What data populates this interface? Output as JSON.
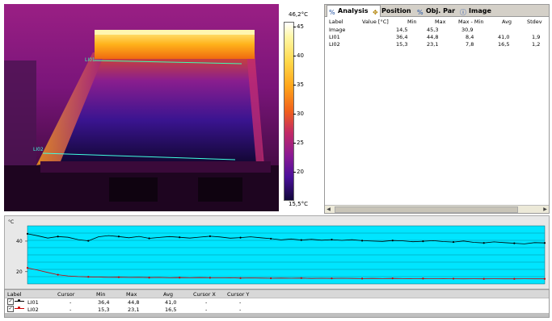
{
  "thermal": {
    "line_labels": [
      "LI01",
      "LI02"
    ],
    "scale_max": "46,2°C",
    "scale_min": "15,5°C",
    "scale_ticks": [
      "45",
      "40",
      "35",
      "30",
      "25",
      "20"
    ]
  },
  "tabs": [
    {
      "label": "Analysis",
      "icon": "analysis-icon"
    },
    {
      "label": "Position",
      "icon": "position-icon"
    },
    {
      "label": "Obj. Par",
      "icon": "object-parameters-icon"
    },
    {
      "label": "Image",
      "icon": "info-icon"
    }
  ],
  "analysis_table": {
    "columns": [
      "Label",
      "Value [°C]",
      "Min",
      "Max",
      "Max - Min",
      "Avg",
      "Stdev"
    ],
    "rows": [
      [
        "Image",
        "",
        "14,5",
        "45,3",
        "30,9",
        "",
        ""
      ],
      [
        "LI01",
        "",
        "36,4",
        "44,8",
        "8,4",
        "41,0",
        "1,9"
      ],
      [
        "LI02",
        "",
        "15,3",
        "23,1",
        "7,8",
        "16,5",
        "1,2"
      ]
    ]
  },
  "chart_data": {
    "type": "line",
    "ylabel": "°C",
    "yticks": [
      "40",
      "20"
    ],
    "ylim": [
      12,
      50
    ],
    "grid": true,
    "background": "#00e5ff",
    "series": [
      {
        "name": "LI01",
        "color": "#000000",
        "values": [
          44.8,
          43.5,
          42.0,
          43.0,
          42.5,
          41.0,
          40.2,
          42.8,
          43.6,
          43.0,
          42.2,
          43.1,
          41.8,
          42.4,
          43.0,
          42.5,
          42.0,
          42.6,
          43.2,
          42.7,
          41.9,
          42.3,
          42.8,
          42.2,
          41.6,
          40.8,
          41.4,
          40.7,
          41.2,
          40.6,
          41.0,
          40.5,
          40.9,
          40.3,
          40.0,
          39.8,
          40.4,
          40.2,
          39.6,
          39.9,
          40.3,
          39.7,
          39.4,
          40.1,
          39.2,
          38.8,
          39.5,
          39.0,
          38.6,
          38.2,
          39.0,
          38.8
        ]
      },
      {
        "name": "LI02",
        "color": "#cc0000",
        "values": [
          22.5,
          21.0,
          19.5,
          18.0,
          17.2,
          16.8,
          16.6,
          16.5,
          16.3,
          16.4,
          16.2,
          16.3,
          16.1,
          16.2,
          16.0,
          16.1,
          16.0,
          16.1,
          16.0,
          15.9,
          16.0,
          15.8,
          15.9,
          15.8,
          15.7,
          15.8,
          15.7,
          15.8,
          15.6,
          15.7,
          15.6,
          15.7,
          15.6,
          15.5,
          15.6,
          15.5,
          15.6,
          15.5,
          15.4,
          15.5,
          15.4,
          15.5,
          15.4,
          15.3,
          15.4,
          15.3,
          15.4,
          15.3,
          15.3,
          15.4,
          15.3,
          15.3
        ]
      }
    ]
  },
  "profile_table": {
    "columns": [
      "Label",
      "Cursor",
      "Min",
      "Max",
      "Avg",
      "Cursor X",
      "Cursor Y"
    ],
    "rows": [
      {
        "label": "LI01",
        "checked": true,
        "color": "#000000",
        "cursor": "-",
        "min": "36,4",
        "max": "44,8",
        "avg": "41,0",
        "cx": "-",
        "cy": "-"
      },
      {
        "label": "LI02",
        "checked": true,
        "color": "#cc0000",
        "cursor": "-",
        "min": "15,3",
        "max": "23,1",
        "avg": "16,5",
        "cx": "-",
        "cy": "-"
      }
    ]
  }
}
